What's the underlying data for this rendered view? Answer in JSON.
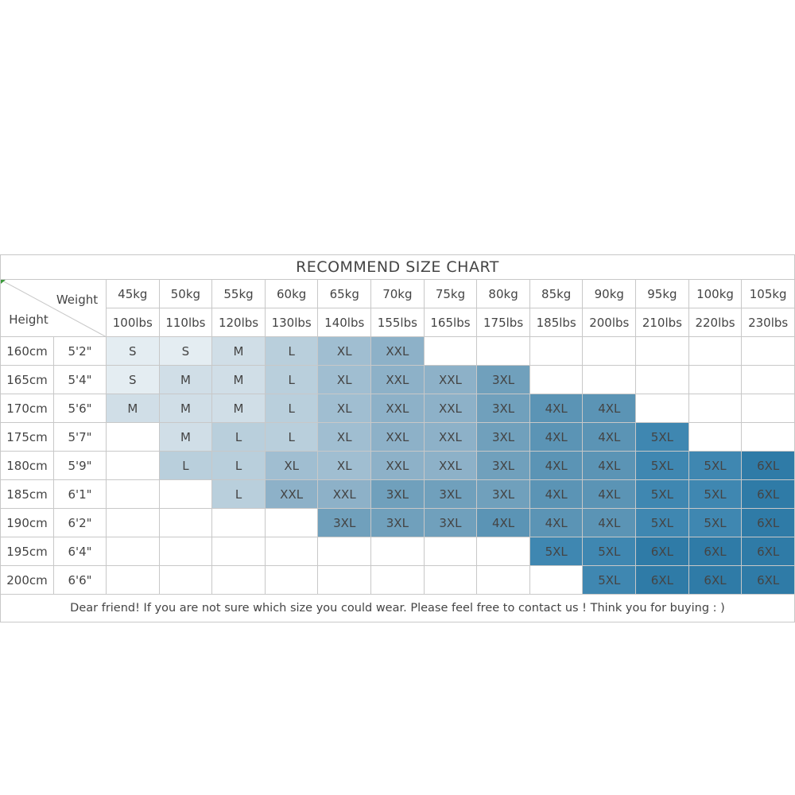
{
  "title": "RECOMMEND SIZE CHART",
  "corner": {
    "weight": "Weight",
    "height": "Height"
  },
  "weights_kg": [
    "45kg",
    "50kg",
    "55kg",
    "60kg",
    "65kg",
    "70kg",
    "75kg",
    "80kg",
    "85kg",
    "90kg",
    "95kg",
    "100kg",
    "105kg"
  ],
  "weights_lbs": [
    "100lbs",
    "110lbs",
    "120lbs",
    "130lbs",
    "140lbs",
    "155lbs",
    "165lbs",
    "175lbs",
    "185lbs",
    "200lbs",
    "210lbs",
    "220lbs",
    "230lbs"
  ],
  "palette": {
    "S": "#e4edf2",
    "M": "#d0dee7",
    "L": "#b9cfdc",
    "XL": "#a0bed1",
    "XXL": "#8db1c8",
    "3XL": "#70a0bc",
    "4XL": "#5b94b5",
    "5XL": "#3f87b1",
    "6XL": "#2f7ba7"
  },
  "rows": [
    {
      "cm": "160cm",
      "ft": "5'2\"",
      "cells": [
        "S",
        "S",
        "M",
        "L",
        "XL",
        "XXL",
        null,
        null,
        null,
        null,
        null,
        null,
        null
      ]
    },
    {
      "cm": "165cm",
      "ft": "5'4\"",
      "cells": [
        "S",
        "M",
        "M",
        "L",
        "XL",
        "XXL",
        "XXL",
        "3XL",
        null,
        null,
        null,
        null,
        null
      ]
    },
    {
      "cm": "170cm",
      "ft": "5'6\"",
      "cells": [
        "M",
        "M",
        "M",
        "L",
        "XL",
        "XXL",
        "XXL",
        "3XL",
        "4XL",
        "4XL",
        null,
        null,
        null
      ]
    },
    {
      "cm": "175cm",
      "ft": "5'7\"",
      "cells": [
        null,
        "M",
        "L",
        "L",
        "XL",
        "XXL",
        "XXL",
        "3XL",
        "4XL",
        "4XL",
        "5XL",
        null,
        null
      ]
    },
    {
      "cm": "180cm",
      "ft": "5'9\"",
      "cells": [
        null,
        "L",
        "L",
        "XL",
        "XL",
        "XXL",
        "XXL",
        "3XL",
        "4XL",
        "4XL",
        "5XL",
        "5XL",
        "6XL"
      ]
    },
    {
      "cm": "185cm",
      "ft": "6'1\"",
      "cells": [
        null,
        null,
        "L",
        "XXL",
        "XXL",
        "3XL",
        "3XL",
        "3XL",
        "4XL",
        "4XL",
        "5XL",
        "5XL",
        "6XL"
      ]
    },
    {
      "cm": "190cm",
      "ft": "6'2\"",
      "cells": [
        null,
        null,
        null,
        null,
        "3XL",
        "3XL",
        "3XL",
        "4XL",
        "4XL",
        "4XL",
        "5XL",
        "5XL",
        "6XL"
      ]
    },
    {
      "cm": "195cm",
      "ft": "6'4\"",
      "cells": [
        null,
        null,
        null,
        null,
        null,
        null,
        null,
        null,
        "5XL",
        "5XL",
        "6XL",
        "6XL",
        "6XL"
      ]
    },
    {
      "cm": "200cm",
      "ft": "6'6\"",
      "cells": [
        null,
        null,
        null,
        null,
        null,
        null,
        null,
        null,
        null,
        "5XL",
        "6XL",
        "6XL",
        "6XL"
      ]
    }
  ],
  "footer": "Dear friend! If you are not sure which size you could wear. Please feel free to contact us ! Think you for buying  : )"
}
